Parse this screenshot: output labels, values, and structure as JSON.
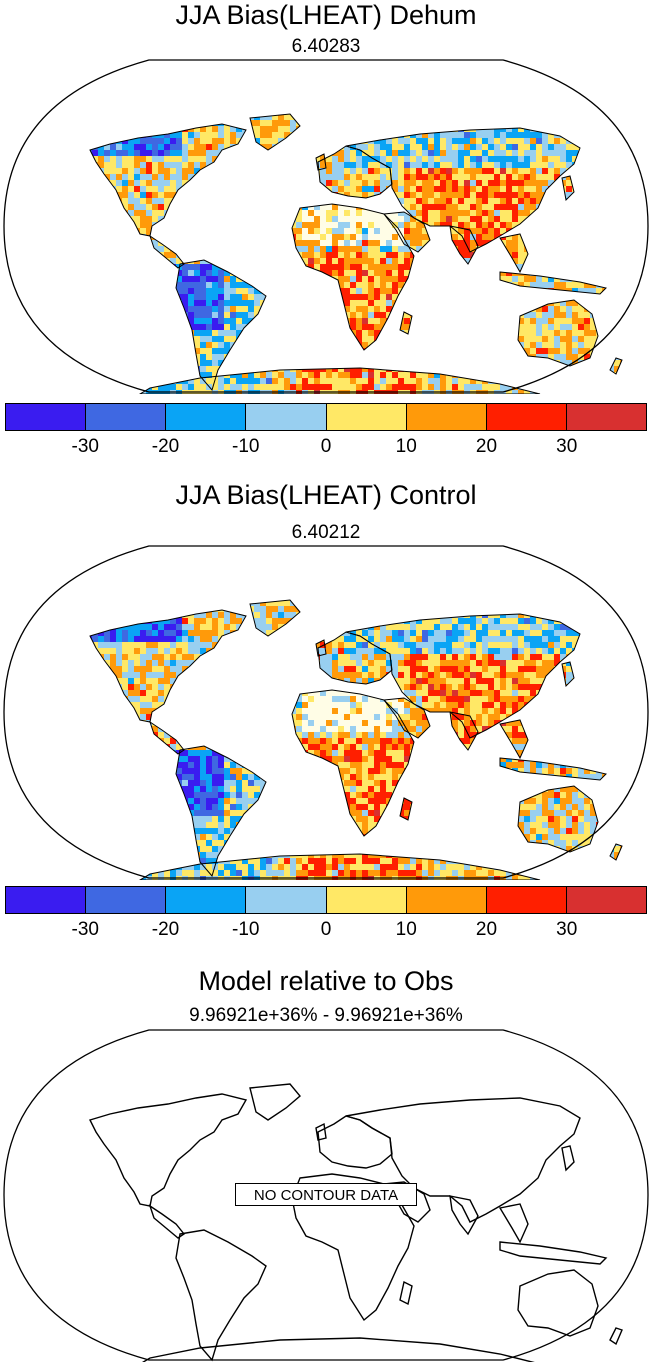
{
  "panels": [
    {
      "title": "JJA Bias(LHEAT) Dehum",
      "subtitle": "6.40283"
    },
    {
      "title": "JJA Bias(LHEAT) Control",
      "subtitle": "6.40212"
    },
    {
      "title": "Model relative to Obs",
      "subtitle": "9.96921e+36% - 9.96921e+36%",
      "no_data_label": "NO CONTOUR DATA"
    }
  ],
  "colorbar": {
    "colors": [
      "#3a1cf0",
      "#3f68e2",
      "#0aa4f5",
      "#98cff0",
      "#ffe866",
      "#ff9a0a",
      "#ff1f00",
      "#d83030"
    ],
    "labels": [
      "-30",
      "-20",
      "-10",
      "0",
      "10",
      "20",
      "30"
    ]
  },
  "chart_data": [
    {
      "type": "heatmap",
      "title": "JJA Bias(LHEAT) Dehum",
      "subtitle": "6.40283",
      "levels": [
        -30,
        -20,
        -10,
        0,
        10,
        20,
        30
      ]
    },
    {
      "type": "heatmap",
      "title": "JJA Bias(LHEAT) Control",
      "subtitle": "6.40212",
      "levels": [
        -30,
        -20,
        -10,
        0,
        10,
        20,
        30
      ]
    },
    {
      "type": "heatmap",
      "title": "Model relative to Obs",
      "subtitle": "9.96921e+36% - 9.96921e+36%",
      "annotation": "NO CONTOUR DATA"
    }
  ]
}
